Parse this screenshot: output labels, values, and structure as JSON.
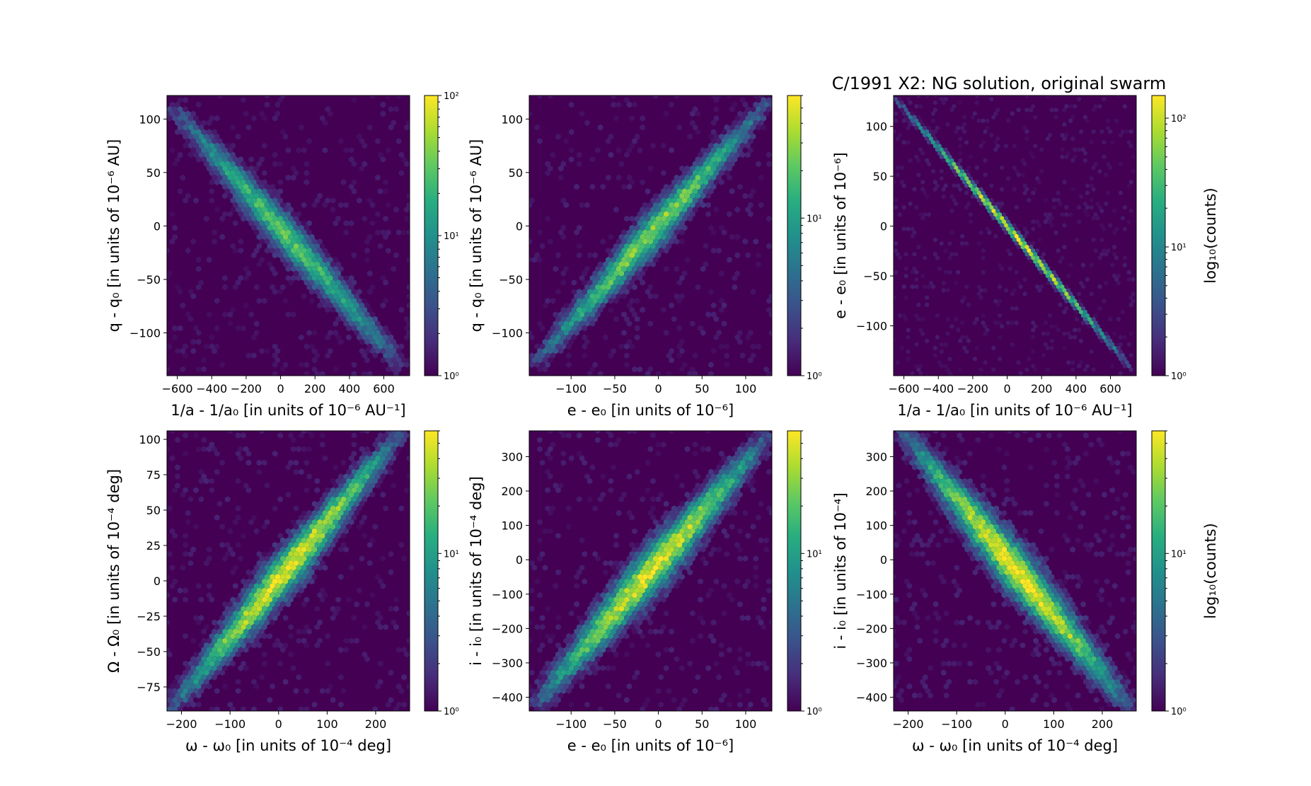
{
  "title": "C/1991 X2:  NG solution, original swarm",
  "colors": {
    "background": "#440154",
    "low": "#3b528b",
    "mid": "#21918c",
    "high": "#5ec962",
    "peak": "#fde725"
  },
  "chart_data": [
    {
      "type": "heatmap",
      "style": "hexbin",
      "xlabel": "1/a - 1/a₀ [in units of 10⁻⁶ AU⁻¹]",
      "ylabel": "q - q₀ [in units of 10⁻⁶ AU]",
      "xlim": [
        -660,
        750
      ],
      "ylim": [
        -140,
        122
      ],
      "xticks": [
        -600,
        -400,
        -200,
        0,
        200,
        400,
        600
      ],
      "yticks": [
        -100,
        -50,
        0,
        50,
        100
      ],
      "colorbar": {
        "scale": "log",
        "min": 1,
        "max": 100,
        "label": "",
        "ticks": [
          "10⁰",
          "10¹",
          "10²"
        ]
      },
      "trend": {
        "x_from": -620,
        "y_from": 110,
        "x_to": 700,
        "y_to": -130
      },
      "scatter_width": 0.08,
      "peak_log_count": 1.45
    },
    {
      "type": "heatmap",
      "style": "hexbin",
      "xlabel": "e - e₀ [in units of 10⁻⁶]",
      "ylabel": "q - q₀ [in units of 10⁻⁶ AU]",
      "xlim": [
        -148,
        130
      ],
      "ylim": [
        -140,
        122
      ],
      "xticks": [
        -100,
        -50,
        0,
        50,
        100
      ],
      "yticks": [
        -100,
        -50,
        0,
        50,
        100
      ],
      "colorbar": {
        "scale": "log",
        "min": 1,
        "max": 60,
        "label": "",
        "ticks": [
          "10⁰",
          "10¹"
        ]
      },
      "trend": {
        "x_from": -140,
        "y_from": -128,
        "x_to": 125,
        "y_to": 115
      },
      "scatter_width": 0.08,
      "peak_log_count": 1.45
    },
    {
      "type": "heatmap",
      "style": "hexbin",
      "xlabel": "1/a - 1/a₀ [in units of 10⁻⁶ AU⁻¹]",
      "ylabel": "e - e₀ [in units of 10⁻⁶]",
      "xlim": [
        -660,
        750
      ],
      "ylim": [
        -150,
        131
      ],
      "xticks": [
        -600,
        -400,
        -200,
        0,
        200,
        400,
        600
      ],
      "yticks": [
        -100,
        -50,
        0,
        50,
        100
      ],
      "colorbar": {
        "scale": "log",
        "min": 1,
        "max": 150,
        "label": "log₁₀(counts)",
        "ticks": [
          "10⁰",
          "10¹",
          "10²"
        ]
      },
      "trend": {
        "x_from": -640,
        "y_from": 126,
        "x_to": 710,
        "y_to": -140
      },
      "scatter_width": 0.012,
      "peak_log_count": 2.1
    },
    {
      "type": "heatmap",
      "style": "hexbin",
      "xlabel": "ω - ω₀ [in units of 10⁻⁴ deg]",
      "ylabel": "Ω - Ω₀ [in units of 10⁻⁴ deg]",
      "xlim": [
        -230,
        270
      ],
      "ylim": [
        -92,
        106
      ],
      "xticks": [
        -200,
        -100,
        0,
        100,
        200
      ],
      "yticks": [
        -75,
        -50,
        -25,
        0,
        25,
        50,
        75,
        100
      ],
      "colorbar": {
        "scale": "log",
        "min": 1,
        "max": 60,
        "label": "",
        "ticks": [
          "10⁰",
          "10¹"
        ]
      },
      "trend": {
        "x_from": -220,
        "y_from": -90,
        "x_to": 250,
        "y_to": 104
      },
      "scatter_width": 0.09,
      "peak_log_count": 1.7
    },
    {
      "type": "heatmap",
      "style": "hexbin",
      "xlabel": "e - e₀ [in units of 10⁻⁶]",
      "ylabel": "i - i₀ [in units of 10⁻⁴ deg]",
      "xlim": [
        -148,
        130
      ],
      "ylim": [
        -440,
        375
      ],
      "xticks": [
        -100,
        -50,
        0,
        50,
        100
      ],
      "yticks": [
        -400,
        -300,
        -200,
        -100,
        0,
        100,
        200,
        300
      ],
      "colorbar": {
        "scale": "log",
        "min": 1,
        "max": 60,
        "label": "",
        "ticks": [
          "10⁰",
          "10¹"
        ]
      },
      "trend": {
        "x_from": -140,
        "y_from": -420,
        "x_to": 125,
        "y_to": 360
      },
      "scatter_width": 0.1,
      "peak_log_count": 1.7
    },
    {
      "type": "heatmap",
      "style": "hexbin",
      "xlabel": "ω - ω₀ [in units of 10⁻⁴ deg]",
      "ylabel": "i - i₀ [in units of 10⁻⁴]",
      "xlim": [
        -230,
        270
      ],
      "ylim": [
        -440,
        375
      ],
      "xticks": [
        -200,
        -100,
        0,
        100,
        200
      ],
      "yticks": [
        -400,
        -300,
        -200,
        -100,
        0,
        100,
        200,
        300
      ],
      "colorbar": {
        "scale": "log",
        "min": 1,
        "max": 60,
        "label": "log₁₀(counts)",
        "ticks": [
          "10⁰",
          "10¹"
        ]
      },
      "trend": {
        "x_from": -210,
        "y_from": 370,
        "x_to": 255,
        "y_to": -430
      },
      "scatter_width": 0.1,
      "peak_log_count": 1.75
    }
  ]
}
